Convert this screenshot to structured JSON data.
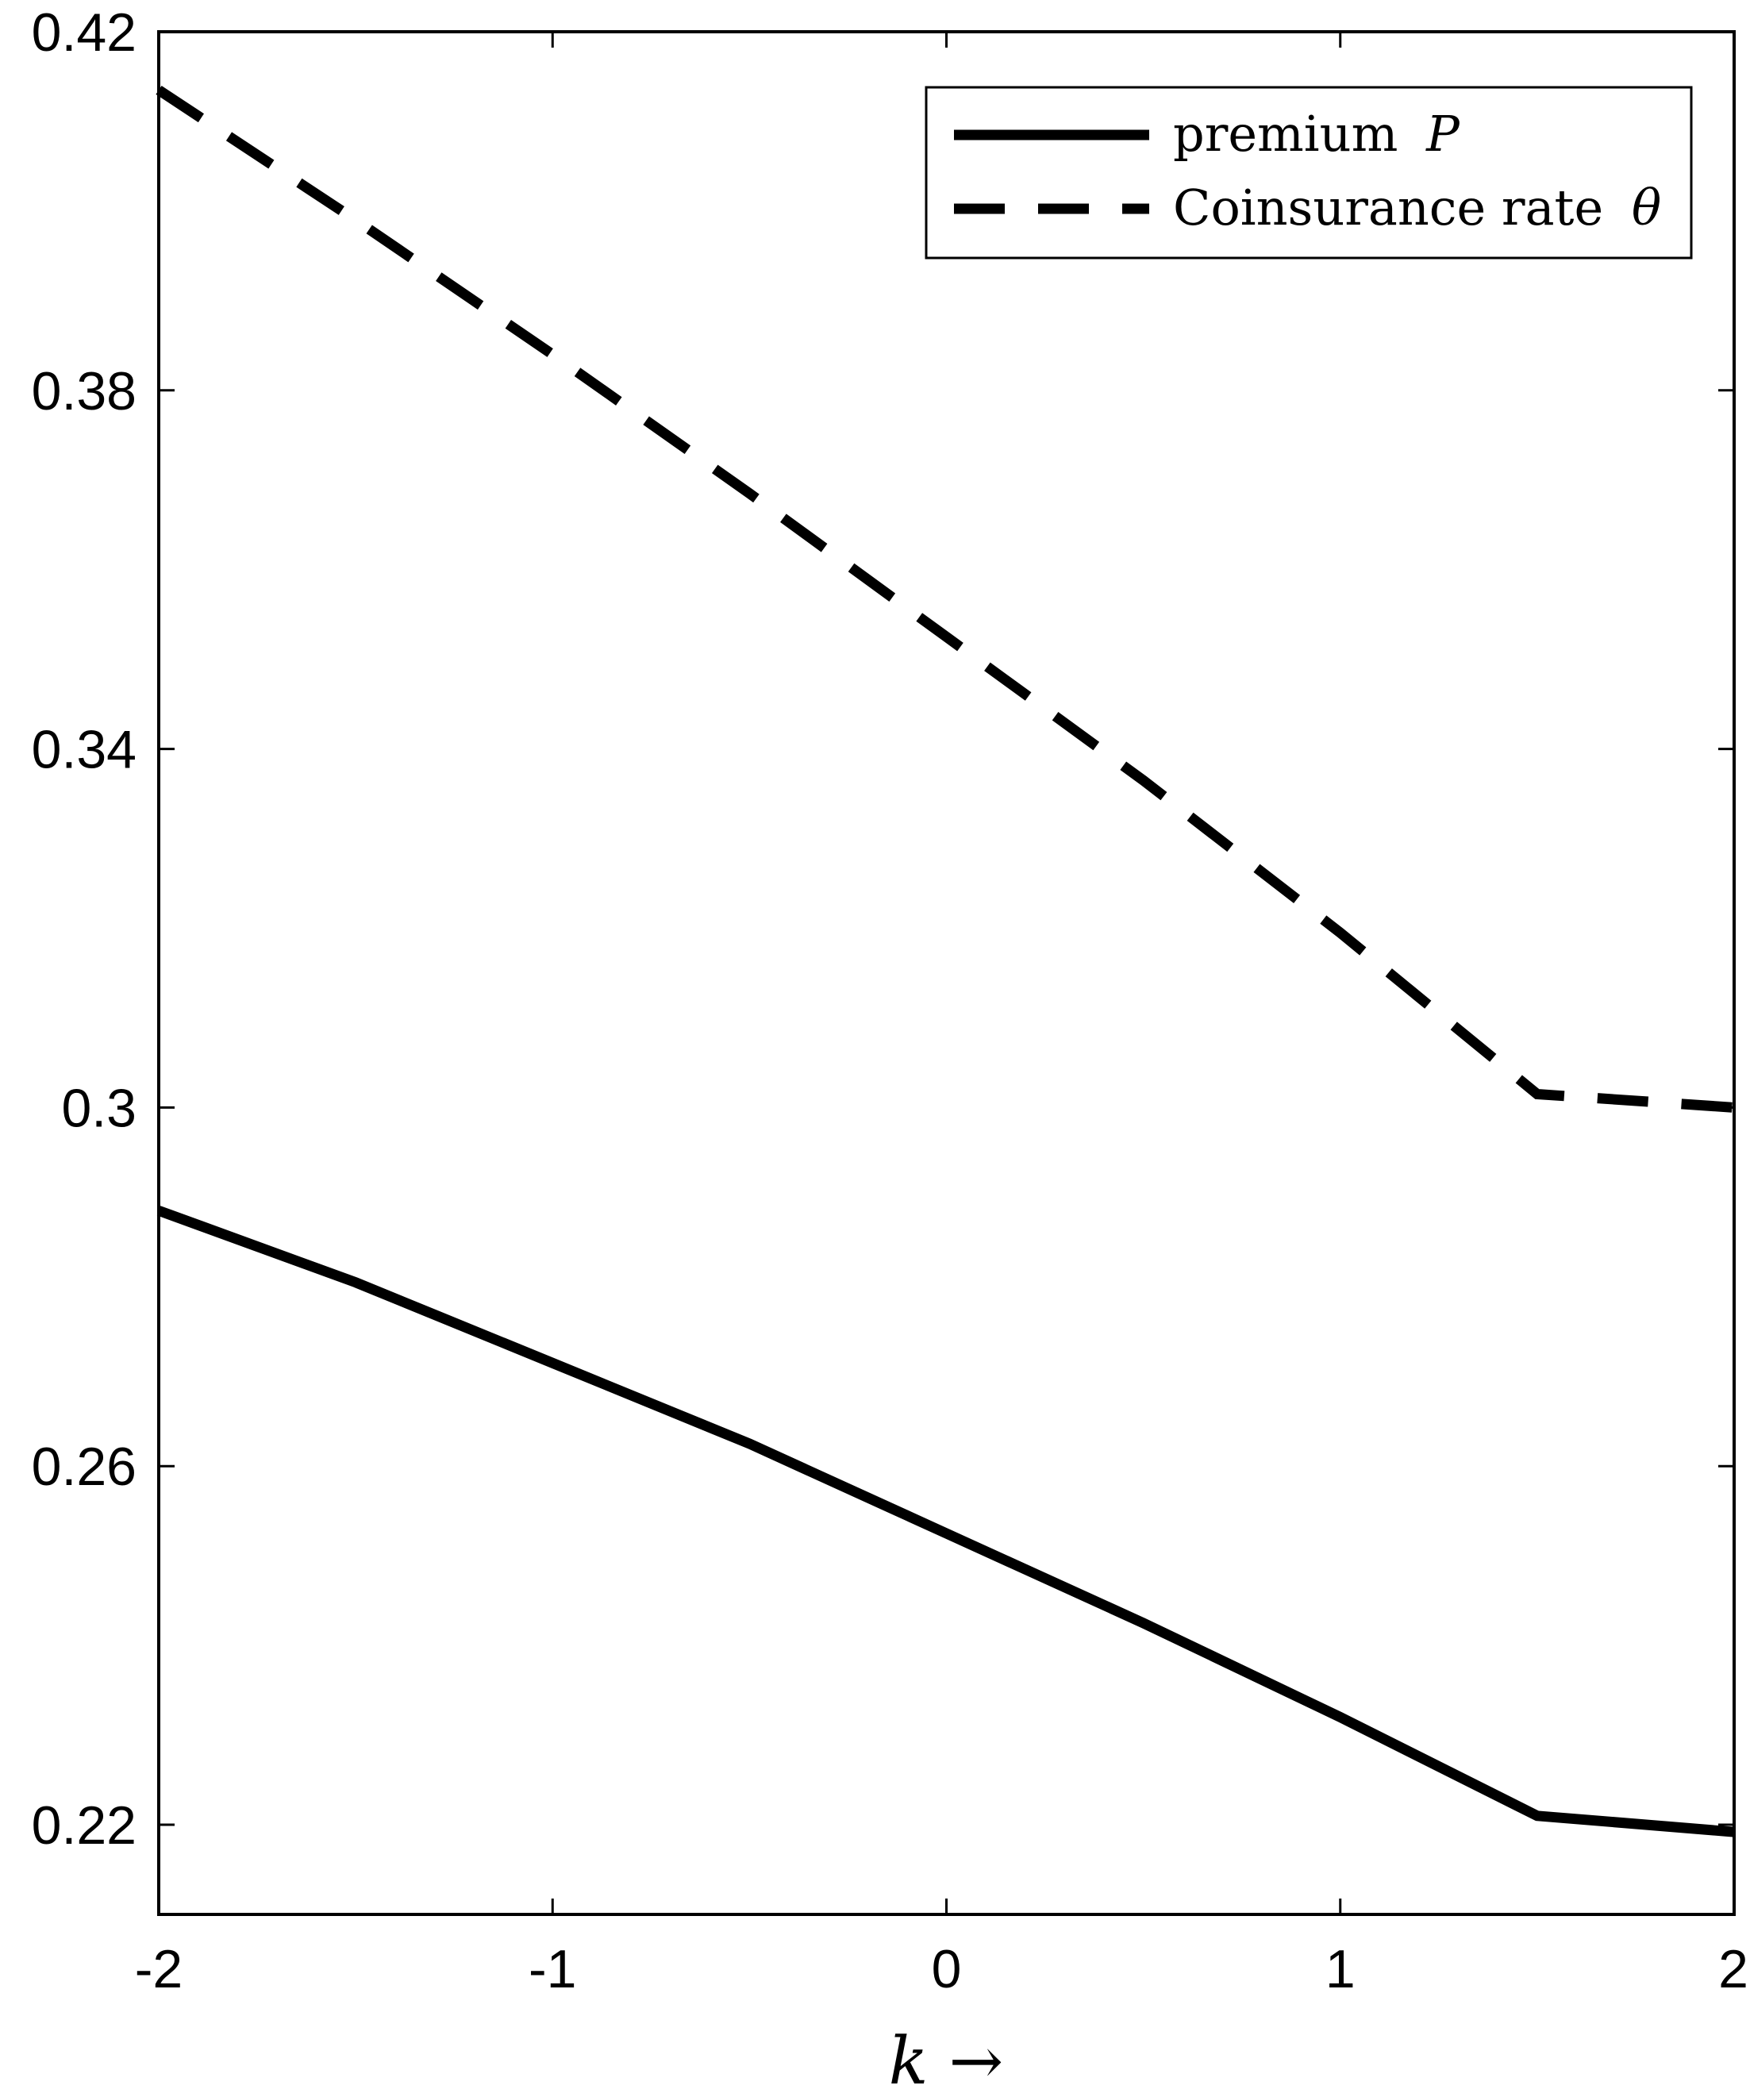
{
  "chart_data": {
    "type": "line",
    "xlabel": {
      "var": "k",
      "suffix": " →"
    },
    "ylabel": "",
    "title": "",
    "xlim": [
      -2,
      2
    ],
    "ylim": [
      0.21,
      0.42
    ],
    "xticks": [
      -2,
      -1,
      0,
      1,
      2
    ],
    "xtick_labels": [
      "-2",
      "-1",
      "0",
      "1",
      "2"
    ],
    "yticks": [
      0.22,
      0.26,
      0.3,
      0.34,
      0.38,
      0.42
    ],
    "ytick_labels": [
      "0.22",
      "0.26",
      "0.3",
      "0.34",
      "0.38",
      "0.42"
    ],
    "grid": false,
    "legend_position": "top-right",
    "series": [
      {
        "name": "premium",
        "name_symbol": "P",
        "style": "solid",
        "color": "#000000",
        "x": [
          -2,
          -1.5,
          -1,
          -0.5,
          0,
          0.5,
          1,
          1.5,
          2
        ],
        "y": [
          0.2885,
          0.2805,
          0.2715,
          0.2625,
          0.2525,
          0.2425,
          0.232,
          0.221,
          0.2192
        ]
      },
      {
        "name": "Coinsurance rate",
        "name_symbol": "θ",
        "style": "dashed",
        "color": "#000000",
        "x": [
          -2,
          -1.5,
          -1,
          -0.5,
          0,
          0.5,
          1,
          1.5,
          2
        ],
        "y": [
          0.4135,
          0.399,
          0.384,
          0.3685,
          0.3525,
          0.3365,
          0.3195,
          0.3015,
          0.3
        ]
      }
    ]
  }
}
